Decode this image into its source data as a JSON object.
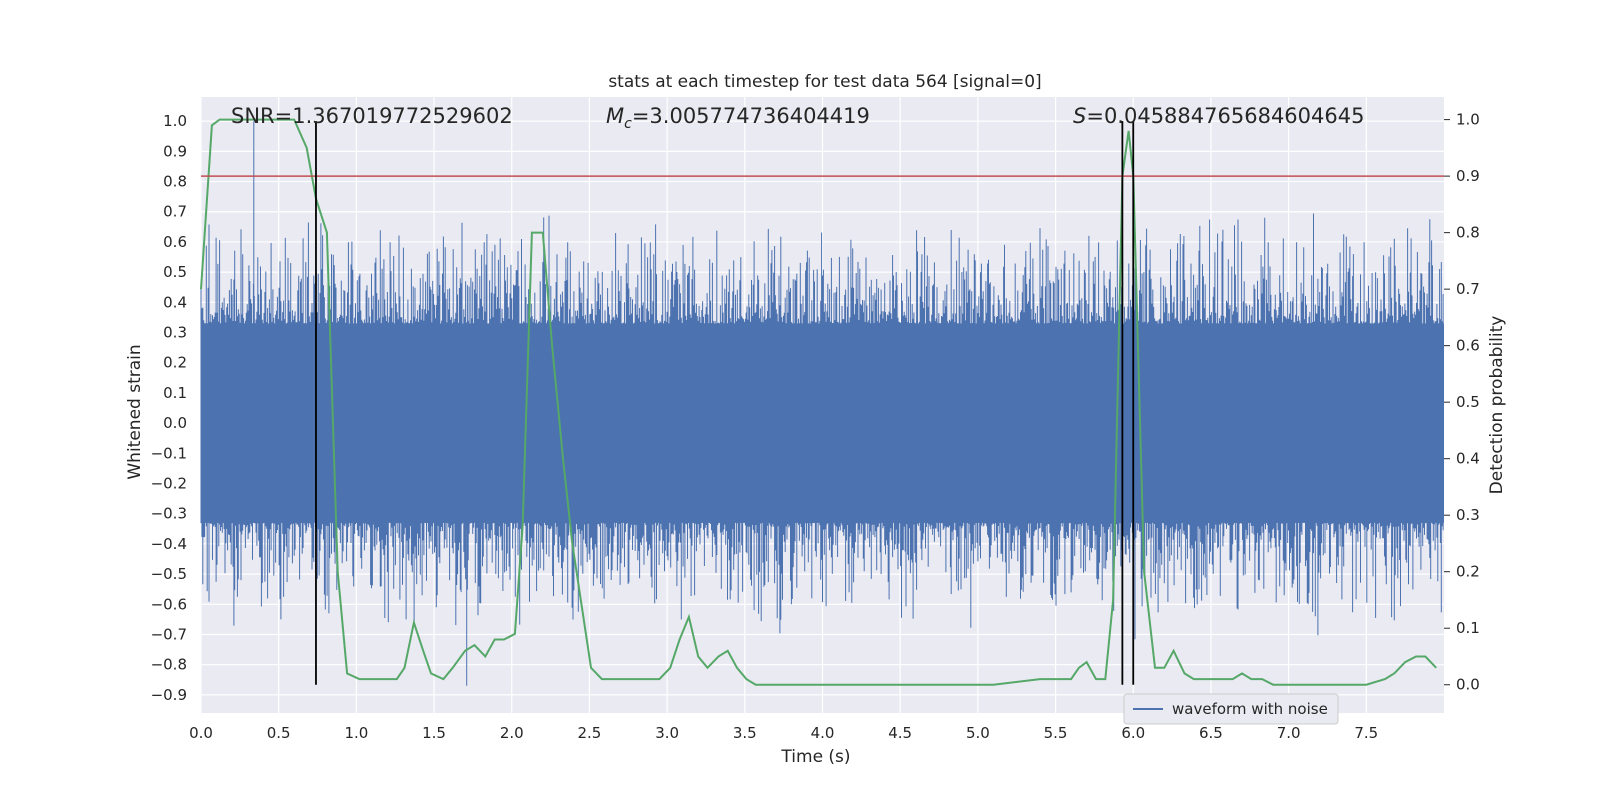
{
  "chart_data": {
    "type": "line",
    "title": "stats at each timestep for test data 564 [signal=0]",
    "xlabel": "Time (s)",
    "ylabel": "Whitened strain",
    "y2label": "Detection probability",
    "xlim": [
      0.0,
      8.0
    ],
    "ylim": [
      -0.96,
      1.08
    ],
    "y2lim": [
      -0.05,
      1.04
    ],
    "xticks": [
      "0.0",
      "0.5",
      "1.0",
      "1.5",
      "2.0",
      "2.5",
      "3.0",
      "3.5",
      "4.0",
      "4.5",
      "5.0",
      "5.5",
      "6.0",
      "6.5",
      "7.0",
      "7.5"
    ],
    "yticks": [
      "1.0",
      "0.9",
      "0.8",
      "0.7",
      "0.6",
      "0.5",
      "0.4",
      "0.3",
      "0.2",
      "0.1",
      "0.0",
      "−0.1",
      "−0.2",
      "−0.3",
      "−0.4",
      "−0.5",
      "−0.6",
      "−0.7",
      "−0.8",
      "−0.9"
    ],
    "y2ticks": [
      "1.0",
      "0.9",
      "0.8",
      "0.7",
      "0.6",
      "0.5",
      "0.4",
      "0.3",
      "0.2",
      "0.1",
      "0.0"
    ],
    "grid": true,
    "legend": {
      "location": "lower-right",
      "entries": [
        "waveform with noise"
      ]
    },
    "annotations": {
      "snr": "SNR=1.367019772529602",
      "mc_symbol": "M",
      "mc_sub": "c",
      "mc_value": "=3.005774736404419",
      "s_symbol": "S",
      "s_value": "=0.045884765684604645"
    },
    "waveform": {
      "name": "waveform with noise",
      "color": "#4c72b0",
      "band_min": -0.33,
      "band_max": 0.33,
      "typical_extreme": 0.5,
      "max": 1.0,
      "min": -0.87
    },
    "threshold": {
      "value": 0.9,
      "axis": "y2",
      "color": "#c44e52"
    },
    "vertical_lines": [
      0.74,
      5.93,
      6.0
    ],
    "probability": {
      "color": "#55a868",
      "x": [
        0.0,
        0.07,
        0.12,
        0.2,
        0.3,
        0.4,
        0.5,
        0.6,
        0.68,
        0.74,
        0.81,
        0.88,
        0.94,
        1.02,
        1.1,
        1.2,
        1.26,
        1.31,
        1.37,
        1.43,
        1.48,
        1.56,
        1.62,
        1.7,
        1.76,
        1.83,
        1.89,
        1.95,
        2.02,
        2.07,
        2.13,
        2.2,
        2.26,
        2.33,
        2.39,
        2.51,
        2.58,
        2.64,
        2.71,
        2.77,
        2.83,
        2.89,
        2.95,
        3.02,
        3.08,
        3.14,
        3.2,
        3.26,
        3.33,
        3.39,
        3.45,
        3.51,
        3.57,
        3.7,
        3.9,
        4.2,
        4.5,
        4.8,
        5.1,
        5.4,
        5.6,
        5.65,
        5.7,
        5.76,
        5.82,
        5.87,
        5.93,
        5.97,
        6.0,
        6.07,
        6.14,
        6.2,
        6.26,
        6.33,
        6.39,
        6.45,
        6.51,
        6.57,
        6.64,
        6.7,
        6.76,
        6.83,
        6.9,
        7.2,
        7.5,
        7.62,
        7.68,
        7.75,
        7.82,
        7.88,
        7.95
      ],
      "y": [
        0.7,
        0.99,
        1.0,
        1.0,
        1.0,
        1.0,
        1.0,
        1.0,
        0.95,
        0.86,
        0.8,
        0.2,
        0.02,
        0.01,
        0.01,
        0.01,
        0.01,
        0.03,
        0.11,
        0.06,
        0.02,
        0.01,
        0.03,
        0.06,
        0.07,
        0.05,
        0.08,
        0.08,
        0.09,
        0.28,
        0.8,
        0.8,
        0.6,
        0.4,
        0.25,
        0.03,
        0.01,
        0.01,
        0.01,
        0.01,
        0.01,
        0.01,
        0.01,
        0.03,
        0.08,
        0.12,
        0.05,
        0.03,
        0.05,
        0.06,
        0.03,
        0.01,
        0.0,
        0.0,
        0.0,
        0.0,
        0.0,
        0.0,
        0.0,
        0.01,
        0.01,
        0.03,
        0.04,
        0.01,
        0.01,
        0.15,
        0.9,
        0.98,
        0.9,
        0.2,
        0.03,
        0.03,
        0.06,
        0.02,
        0.01,
        0.01,
        0.01,
        0.01,
        0.01,
        0.02,
        0.01,
        0.01,
        0.0,
        0.0,
        0.0,
        0.01,
        0.02,
        0.04,
        0.05,
        0.05,
        0.03
      ]
    }
  }
}
